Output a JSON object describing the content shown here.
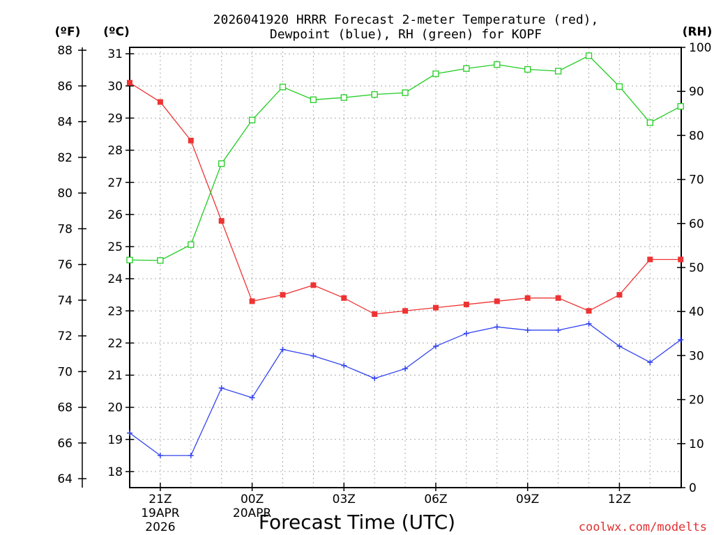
{
  "chart_data": {
    "type": "line",
    "title_line1": "2026041920 HRRR Forecast 2-meter Temperature (red),",
    "title_line2": "Dewpoint (blue), RH (green) for KOPF",
    "xlabel": "Forecast Time (UTC)",
    "credit": "coolwx.com/modelts",
    "x_hours_from_20z": [
      0,
      1,
      2,
      3,
      4,
      5,
      6,
      7,
      8,
      9,
      10,
      11,
      12,
      13,
      14,
      15,
      16,
      17,
      18
    ],
    "x_tick_hours": [
      1,
      4,
      7,
      10,
      13,
      16
    ],
    "x_tick_labels": [
      "21Z",
      "00Z",
      "03Z",
      "06Z",
      "09Z",
      "12Z"
    ],
    "x_date_labels": [
      {
        "hour": 1,
        "line1": "19APR",
        "line2": "2026"
      },
      {
        "hour": 4,
        "line1": "20APR",
        "line2": ""
      }
    ],
    "axes": {
      "fahrenheit": {
        "label": "(ºF)",
        "ticks": [
          64,
          66,
          68,
          70,
          72,
          74,
          76,
          78,
          80,
          82,
          84,
          86,
          88
        ]
      },
      "celsius": {
        "label": "(ºC)",
        "ylim": [
          17.5,
          31.2
        ],
        "ticks": [
          18,
          19,
          20,
          21,
          22,
          23,
          24,
          25,
          26,
          27,
          28,
          29,
          30,
          31
        ]
      },
      "rh": {
        "label": "(RH)",
        "ylim": [
          0,
          100
        ],
        "ticks": [
          0,
          10,
          20,
          30,
          40,
          50,
          60,
          70,
          80,
          90,
          100
        ]
      }
    },
    "series": [
      {
        "name": "Temperature",
        "unit": "C",
        "color": "#ee3333",
        "marker": "filled-square",
        "values": [
          30.1,
          29.5,
          28.3,
          25.8,
          23.3,
          23.5,
          23.8,
          23.4,
          22.9,
          23.0,
          23.1,
          23.2,
          23.3,
          23.4,
          23.4,
          23.0,
          23.5,
          24.6,
          24.6
        ]
      },
      {
        "name": "Dewpoint",
        "unit": "C",
        "color": "#3344ee",
        "marker": "plus",
        "values": [
          19.2,
          18.5,
          18.5,
          20.6,
          20.3,
          21.8,
          21.6,
          21.3,
          20.9,
          21.2,
          21.9,
          22.3,
          22.5,
          22.4,
          22.4,
          22.6,
          21.9,
          21.4,
          22.1
        ]
      },
      {
        "name": "RH",
        "unit": "%",
        "color": "#22cc22",
        "marker": "open-square",
        "values": [
          51.7,
          51.6,
          55.2,
          73.6,
          83.5,
          91.0,
          88.1,
          88.6,
          89.3,
          89.7,
          94.0,
          95.2,
          96.1,
          95.0,
          94.6,
          98.1,
          91.1,
          82.9,
          86.6
        ]
      }
    ]
  }
}
